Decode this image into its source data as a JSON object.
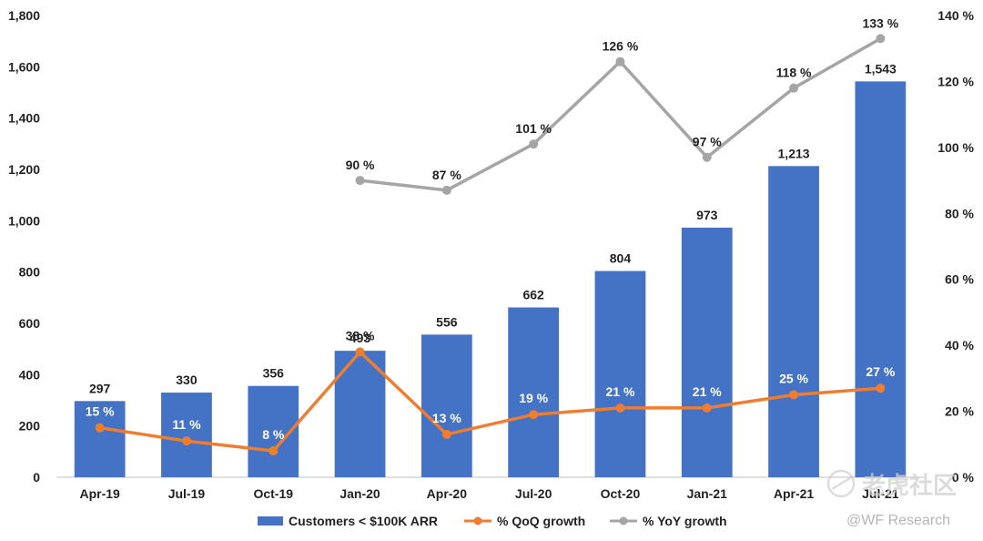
{
  "chart_data": {
    "type": "bar",
    "categories": [
      "Apr-19",
      "Jul-19",
      "Oct-19",
      "Jan-20",
      "Apr-20",
      "Jul-20",
      "Oct-20",
      "Jan-21",
      "Apr-21",
      "Jul-21"
    ],
    "series": [
      {
        "name": "Customers < $100K ARR",
        "type": "bar",
        "axis": "left",
        "color": "#4472C4",
        "values": [
          297,
          330,
          356,
          493,
          556,
          662,
          804,
          973,
          1213,
          1543
        ],
        "labels": [
          "297",
          "330",
          "356",
          "493",
          "556",
          "662",
          "804",
          "973",
          "1,213",
          "1,543"
        ]
      },
      {
        "name": "% QoQ growth",
        "type": "line",
        "axis": "right",
        "color": "#ED7D31",
        "values": [
          15,
          11,
          8,
          38,
          13,
          19,
          21,
          21,
          25,
          27
        ],
        "labels": [
          "15 %",
          "11 %",
          "8 %",
          "38 %",
          "13 %",
          "19 %",
          "21 %",
          "21 %",
          "25 %",
          "27 %"
        ]
      },
      {
        "name": "% YoY growth",
        "type": "line",
        "axis": "right",
        "color": "#A5A5A5",
        "values": [
          null,
          null,
          null,
          90,
          87,
          101,
          126,
          97,
          118,
          133
        ],
        "labels": [
          null,
          null,
          null,
          "90 %",
          "87 %",
          "101 %",
          "126 %",
          "97 %",
          "118 %",
          "133 %"
        ]
      }
    ],
    "y_left": {
      "min": 0,
      "max": 1800,
      "ticks": [
        "0",
        "200",
        "400",
        "600",
        "800",
        "1,000",
        "1,200",
        "1,400",
        "1,600",
        "1,800"
      ]
    },
    "y_right": {
      "min": 0,
      "max": 140,
      "ticks": [
        "0 %",
        "20 %",
        "40 %",
        "60 %",
        "80 %",
        "100 %",
        "120 %",
        "140 %"
      ]
    },
    "grid": false,
    "legend_position": "bottom"
  },
  "watermark": {
    "brand": "老虎社区",
    "credit": "@WF Research"
  }
}
